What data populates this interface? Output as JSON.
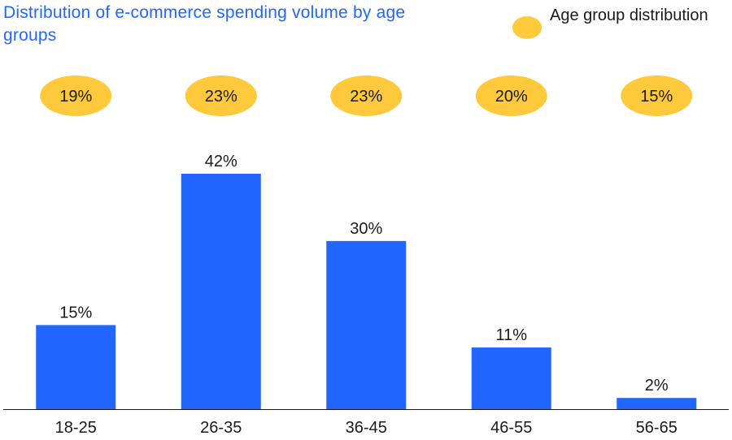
{
  "title": "Distribution of e-commerce spending volume by age groups",
  "legend": {
    "label": "Age group distribution",
    "color": "#ffc93c"
  },
  "colors": {
    "bar": "#2166ff",
    "bubble": "#ffc93c",
    "text": "#1a1a1a",
    "axis": "#1a1a1a"
  },
  "chart_data": {
    "type": "bar",
    "categories": [
      "18-25",
      "26-35",
      "36-45",
      "46-55",
      "56-65"
    ],
    "series": [
      {
        "name": "",
        "values": [
          15,
          42,
          30,
          11,
          2
        ],
        "labels": [
          "15%",
          "42%",
          "30%",
          "11%",
          "2%"
        ]
      },
      {
        "name": "Age group distribution",
        "values": [
          19,
          23,
          23,
          20,
          15
        ],
        "labels": [
          "19%",
          "23%",
          "23%",
          "20%",
          "15%"
        ]
      }
    ],
    "title": "Distribution of e-commerce spending volume by age groups",
    "xlabel": "",
    "ylabel": "",
    "ylim": [
      0,
      42
    ],
    "grid": false,
    "legend_position": "top-right"
  }
}
